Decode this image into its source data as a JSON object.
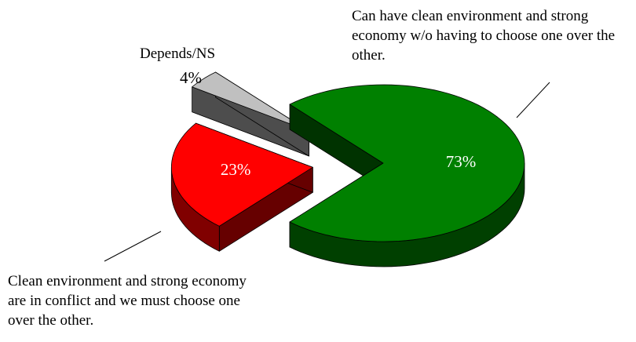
{
  "chart_data": {
    "type": "pie",
    "categories": [
      "Can have clean environment and strong economy w/o having to choose one over the other.",
      "Clean environment and strong economy are in conflict and we must choose one over the other.",
      "Depends/NS"
    ],
    "values": [
      73,
      23,
      4
    ],
    "value_labels": [
      "73%",
      "23%",
      "4%"
    ],
    "colors": [
      "#008000",
      "#ff0000",
      "#c0c0c0"
    ],
    "exploded": true,
    "three_d": true
  }
}
